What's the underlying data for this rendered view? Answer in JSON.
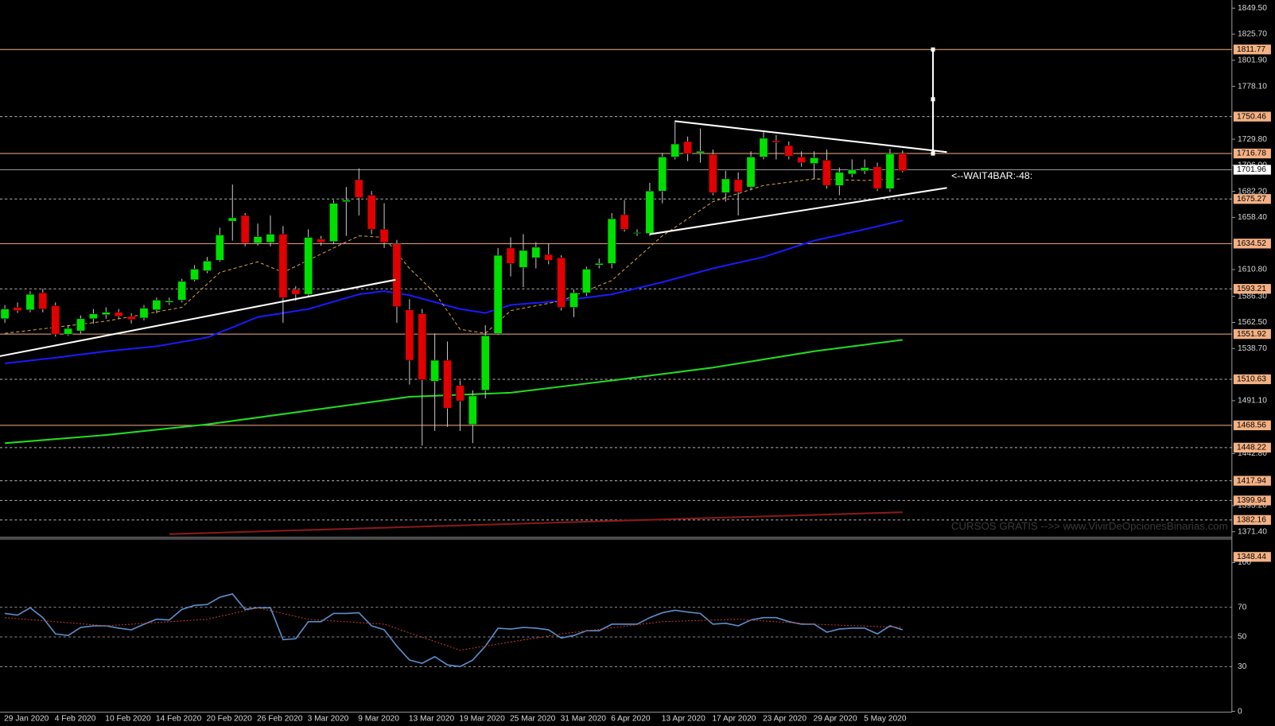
{
  "chart_data": {
    "type": "candlestick",
    "categories": [
      "29 Jan 2020",
      null,
      null,
      null,
      "4 Feb 2020",
      null,
      null,
      null,
      "10 Feb 2020",
      null,
      null,
      null,
      "14 Feb 2020",
      null,
      null,
      null,
      "20 Feb 2020",
      null,
      null,
      null,
      "26 Feb 2020",
      null,
      null,
      null,
      "3 Mar 2020",
      null,
      null,
      null,
      "9 Mar 2020",
      null,
      null,
      null,
      "13 Mar 2020",
      null,
      null,
      null,
      "19 Mar 2020",
      null,
      null,
      null,
      "25 Mar 2020",
      null,
      null,
      null,
      "31 Mar 2020",
      null,
      null,
      null,
      "6 Apr 2020",
      null,
      null,
      null,
      "13 Apr 2020",
      null,
      null,
      null,
      "17 Apr 2020",
      null,
      null,
      null,
      "23 Apr 2020",
      null,
      null,
      null,
      "29 Apr 2020",
      null,
      null,
      null,
      "5 May 2020",
      null,
      null,
      null
    ],
    "open": [
      1565.9,
      1576.3,
      1574.0,
      1589.6,
      1577.8,
      1551.8,
      1554.8,
      1565.9,
      1569.6,
      1571.8,
      1568.1,
      1566.6,
      1574.0,
      1580.8,
      1582.9,
      1601.5,
      1609.7,
      1619.3,
      1655.0,
      1660.2,
      1635.0,
      1635.7,
      1643.1,
      1592.6,
      1588.2,
      1638.7,
      1636.4,
      1672.8,
      1692.9,
      1678.7,
      1647.6,
      1634.2,
      1574.0,
      1570.4,
      1508.8,
      1528.0,
      1505.0,
      1469.4,
      1500.6,
      1552.5,
      1630.5,
      1612.7,
      1621.6,
      1624.5,
      1621.6,
      1576.3,
      1589.6,
      1614.9,
      1616.4,
      1660.9,
      1643.8,
      1643.8,
      1682.5,
      1713.6,
      1727.7,
      1717.3,
      1715.9,
      1681.0,
      1692.9,
      1686.2,
      1713.6,
      1728.5,
      1724.0,
      1713.6,
      1707.7,
      1710.7,
      1687.6,
      1698.0,
      1701.0,
      1704.7,
      1684.7,
      1716.6
    ],
    "high": [
      1578.5,
      1580.8,
      1591.1,
      1593.3,
      1580.8,
      1560.0,
      1568.9,
      1574.8,
      1576.3,
      1574.8,
      1571.1,
      1578.5,
      1585.2,
      1585.2,
      1602.3,
      1614.9,
      1622.3,
      1649.0,
      1688.4,
      1662.4,
      1652.8,
      1660.2,
      1650.5,
      1595.6,
      1647.6,
      1641.6,
      1674.3,
      1686.2,
      1703.2,
      1682.5,
      1671.3,
      1637.9,
      1583.7,
      1574.8,
      1552.5,
      1545.1,
      1509.5,
      1500.6,
      1560.0,
      1630.5,
      1640.2,
      1643.1,
      1635.7,
      1634.2,
      1623.8,
      1592.6,
      1613.4,
      1620.8,
      1662.4,
      1674.3,
      1647.6,
      1689.9,
      1717.3,
      1747.0,
      1732.2,
      1739.6,
      1720.3,
      1701.0,
      1699.5,
      1718.8,
      1738.1,
      1733.7,
      1727.7,
      1718.8,
      1718.8,
      1720.3,
      1704.0,
      1711.4,
      1711.4,
      1708.4,
      1721.1,
      1719.6
    ],
    "low": [
      1562.2,
      1571.1,
      1571.8,
      1571.8,
      1549.6,
      1550.3,
      1552.5,
      1561.5,
      1565.9,
      1565.9,
      1561.5,
      1564.4,
      1571.1,
      1578.5,
      1580.8,
      1600.0,
      1607.5,
      1617.9,
      1637.2,
      1632.0,
      1632.7,
      1632.0,
      1562.2,
      1582.2,
      1585.2,
      1632.7,
      1634.2,
      1641.6,
      1660.2,
      1643.1,
      1630.5,
      1562.2,
      1505.8,
      1450.1,
      1463.5,
      1467.2,
      1463.5,
      1452.3,
      1493.1,
      1551.1,
      1604.5,
      1594.8,
      1611.9,
      1615.6,
      1573.3,
      1567.4,
      1586.7,
      1611.9,
      1611.9,
      1645.3,
      1641.6,
      1641.6,
      1671.3,
      1711.4,
      1709.9,
      1708.4,
      1678.7,
      1672.8,
      1660.2,
      1683.2,
      1711.4,
      1711.4,
      1711.4,
      1704.7,
      1693.6,
      1684.7,
      1678.7,
      1695.1,
      1698.0,
      1682.5,
      1681.7,
      1699.5
    ],
    "close": [
      1574.8,
      1573.3,
      1588.2,
      1574.8,
      1551.8,
      1557.0,
      1565.9,
      1570.4,
      1571.8,
      1568.1,
      1565.2,
      1575.5,
      1582.9,
      1582.2,
      1600.0,
      1611.2,
      1618.6,
      1642.4,
      1658.0,
      1635.0,
      1640.9,
      1643.1,
      1585.2,
      1588.2,
      1640.2,
      1635.7,
      1671.3,
      1674.3,
      1676.5,
      1647.6,
      1635.7,
      1577.0,
      1528.0,
      1510.2,
      1528.0,
      1484.2,
      1490.9,
      1495.4,
      1550.3,
      1623.8,
      1616.4,
      1628.3,
      1631.2,
      1619.3,
      1576.3,
      1589.6,
      1611.2,
      1616.4,
      1657.2,
      1647.6,
      1644.6,
      1682.5,
      1713.6,
      1725.5,
      1716.6,
      1718.8,
      1681.0,
      1693.6,
      1681.7,
      1713.6,
      1730.7,
      1727.0,
      1714.4,
      1708.4,
      1712.9,
      1687.6,
      1699.5,
      1701.7,
      1704.0,
      1684.7,
      1716.6,
      1701.0
    ],
    "up_color": "#00e000",
    "down_color": "#e00000",
    "ylim": [
      1348.44,
      1849.5
    ],
    "yticks": [
      {
        "value": 1849.5,
        "label": "1849.50"
      },
      {
        "value": 1825.7,
        "label": "1825.70"
      },
      {
        "value": 1801.9,
        "label": "1801.90"
      },
      {
        "value": 1778.1,
        "label": "1778.10"
      },
      {
        "value": 1729.8,
        "label": "1729.80"
      },
      {
        "value": 1706.0,
        "label": "1706.00"
      },
      {
        "value": 1682.2,
        "label": "1682.20"
      },
      {
        "value": 1658.4,
        "label": "1658.40"
      },
      {
        "value": 1610.8,
        "label": "1610.80"
      },
      {
        "value": 1586.3,
        "label": "1586.30"
      },
      {
        "value": 1562.5,
        "label": "1562.50"
      },
      {
        "value": 1538.7,
        "label": "1538.70"
      },
      {
        "value": 1491.1,
        "label": "1491.10"
      },
      {
        "value": 1442.8,
        "label": "1442.80"
      },
      {
        "value": 1395.2,
        "label": "1395.20"
      },
      {
        "value": 1371.4,
        "label": "1371.40"
      }
    ],
    "levels": [
      {
        "value": 1811.77,
        "dashed": false
      },
      {
        "value": 1750.46,
        "dashed": true
      },
      {
        "value": 1716.78,
        "dashed": false
      },
      {
        "value": 1675.27,
        "dashed": true
      },
      {
        "value": 1634.52,
        "dashed": false
      },
      {
        "value": 1593.21,
        "dashed": true
      },
      {
        "value": 1551.92,
        "dashed": false
      },
      {
        "value": 1510.63,
        "dashed": true
      },
      {
        "value": 1468.56,
        "dashed": false
      },
      {
        "value": 1448.22,
        "dashed": true
      },
      {
        "value": 1417.94,
        "dashed": true
      },
      {
        "value": 1399.94,
        "dashed": true
      },
      {
        "value": 1382.16,
        "dashed": true
      },
      {
        "value": 1348.44,
        "dashed": true
      }
    ],
    "level_color": "#f4b183",
    "bid": 1701.96,
    "lines": [
      {
        "color": "#1a1aff",
        "dashed": false,
        "x": [
          0,
          4,
          8,
          12,
          16,
          20,
          24,
          28,
          30,
          32,
          36,
          38,
          40,
          44,
          48,
          52,
          56,
          60,
          64,
          68,
          71
        ],
        "values": [
          1525.1,
          1530.3,
          1536.2,
          1540.7,
          1548.8,
          1567.4,
          1574.8,
          1588.2,
          1591.1,
          1587.4,
          1574.8,
          1571.1,
          1578.5,
          1582.2,
          1588.2,
          1599.3,
          1611.9,
          1622.3,
          1637.2,
          1647.6,
          1655.7
        ]
      },
      {
        "color": "#22dd22",
        "dashed": false,
        "x": [
          0,
          8,
          16,
          24,
          32,
          40,
          48,
          56,
          64,
          71
        ],
        "values": [
          1452.3,
          1459.7,
          1469.4,
          1482.0,
          1494.6,
          1498.3,
          1509.5,
          1521.3,
          1536.2,
          1546.6
        ]
      },
      {
        "color": "#d9a441",
        "dashed": true,
        "x": [
          0,
          8,
          14,
          17,
          20,
          22,
          26,
          28,
          30,
          32,
          34,
          36,
          38,
          40,
          44,
          48,
          52,
          56,
          60,
          64,
          68,
          71
        ],
        "values": [
          1552.5,
          1563.7,
          1576.3,
          1608.2,
          1617.9,
          1608.2,
          1630.5,
          1641.6,
          1640.2,
          1611.9,
          1589.6,
          1556.3,
          1552.5,
          1573.3,
          1582.2,
          1600.8,
          1641.6,
          1672.8,
          1687.6,
          1693.6,
          1692.1,
          1693.6
        ]
      },
      {
        "color": "#8b1a1a",
        "dashed": false,
        "x": [
          13,
          71
        ],
        "values": [
          1369.2,
          1389.2
        ]
      }
    ],
    "trendlines": [
      {
        "x": [
          -0.4,
          30.9
        ],
        "values": [
          1531.7,
          1601.5
        ]
      },
      {
        "x": [
          51,
          74.5
        ],
        "values": [
          1643.1,
          1685.4
        ]
      },
      {
        "x": [
          53,
          74.5
        ],
        "values": [
          1746.3,
          1718.1
        ]
      }
    ],
    "projection": {
      "x": 73.4,
      "values": [
        1811.77,
        1766.3,
        1716.78
      ]
    },
    "annotation": "<--WAIT4BAR:-48:",
    "watermark": "CURSOS GRATIS -->> www.VivirDeOpcionesBinarias.com",
    "indicator": {
      "ylim": [
        0,
        100
      ],
      "yticks": [
        100,
        70,
        50,
        30,
        0
      ],
      "color": "#5b8dc9",
      "values": [
        65.8,
        64.7,
        69.6,
        63.0,
        52.1,
        51.0,
        56.4,
        57.5,
        57.5,
        55.9,
        54.8,
        58.6,
        61.9,
        61.4,
        68.5,
        71.2,
        71.8,
        76.7,
        78.9,
        68.5,
        69.6,
        69.6,
        48.2,
        48.8,
        60.3,
        60.3,
        65.8,
        65.8,
        66.3,
        57.5,
        54.8,
        43.8,
        34.5,
        32.3,
        36.7,
        31.2,
        30.1,
        34.5,
        43.8,
        55.9,
        55.3,
        56.4,
        55.9,
        54.8,
        49.3,
        51.0,
        54.2,
        54.2,
        58.6,
        58.6,
        58.6,
        63.0,
        66.3,
        67.9,
        66.8,
        65.8,
        58.6,
        59.2,
        57.5,
        61.4,
        63.0,
        63.0,
        60.3,
        58.6,
        58.6,
        53.2,
        55.3,
        55.9,
        55.9,
        52.1,
        57.5,
        54.8
      ],
      "signal": {
        "color": "#c0392b",
        "x": [
          0,
          4,
          8,
          16,
          20,
          24,
          30,
          36,
          40,
          44,
          52,
          58,
          64,
          71
        ],
        "values": [
          63.0,
          60.3,
          57.5,
          61.9,
          69.6,
          61.9,
          58.6,
          41.1,
          46.6,
          52.1,
          60.3,
          61.9,
          58.6,
          56.4
        ]
      }
    }
  }
}
